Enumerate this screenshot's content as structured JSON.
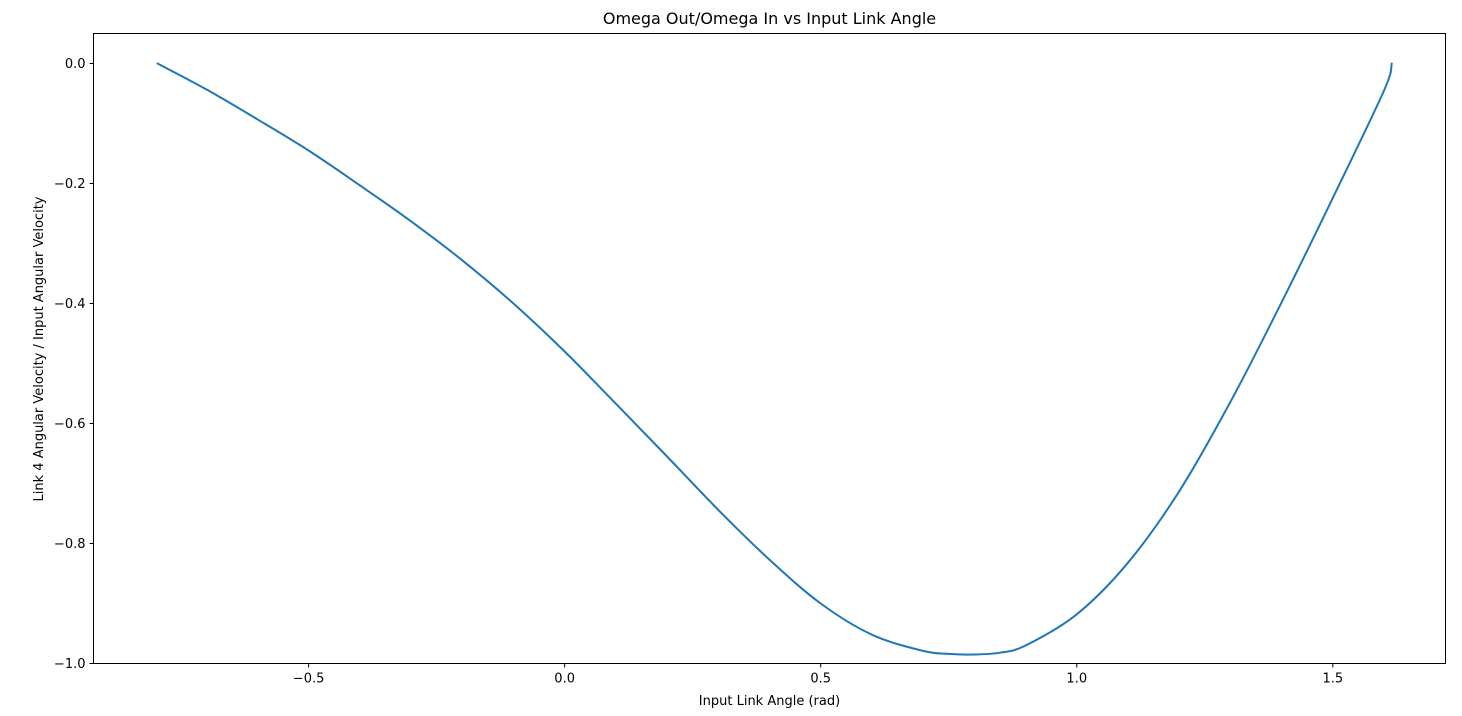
{
  "chart_data": {
    "type": "line",
    "title": "Omega Out/Omega In vs Input Link Angle",
    "xlabel": "Input Link Angle (rad)",
    "ylabel": "Link 4 Angular Velocity / Input Angular Velocity",
    "xlim": [
      -0.92,
      1.72
    ],
    "ylim": [
      -1.0,
      0.05
    ],
    "grid": false,
    "legend": "none",
    "x_ticks": [
      {
        "value": -0.5,
        "label": "−0.5"
      },
      {
        "value": 0.0,
        "label": "0.0"
      },
      {
        "value": 0.5,
        "label": "0.5"
      },
      {
        "value": 1.0,
        "label": "1.0"
      },
      {
        "value": 1.5,
        "label": "1.5"
      }
    ],
    "y_ticks": [
      {
        "value": 0.0,
        "label": "0.0"
      },
      {
        "value": -0.2,
        "label": "−0.2"
      },
      {
        "value": -0.4,
        "label": "−0.4"
      },
      {
        "value": -0.6,
        "label": "−0.6"
      },
      {
        "value": -0.8,
        "label": "−0.8"
      },
      {
        "value": -1.0,
        "label": "−1.0"
      }
    ],
    "series": [
      {
        "color": "#1f77b4",
        "x": [
          -0.795,
          -0.7,
          -0.6,
          -0.5,
          -0.4,
          -0.3,
          -0.2,
          -0.1,
          0.0,
          0.1,
          0.2,
          0.3,
          0.4,
          0.5,
          0.6,
          0.7,
          0.75,
          0.8,
          0.85,
          0.9,
          1.0,
          1.1,
          1.2,
          1.3,
          1.4,
          1.5,
          1.6,
          1.615
        ],
        "y": [
          0.0,
          -0.043,
          -0.093,
          -0.145,
          -0.203,
          -0.263,
          -0.328,
          -0.4,
          -0.48,
          -0.567,
          -0.655,
          -0.744,
          -0.827,
          -0.9,
          -0.952,
          -0.979,
          -0.984,
          -0.985,
          -0.982,
          -0.97,
          -0.918,
          -0.832,
          -0.713,
          -0.564,
          -0.398,
          -0.224,
          -0.045,
          0.0
        ]
      }
    ]
  }
}
